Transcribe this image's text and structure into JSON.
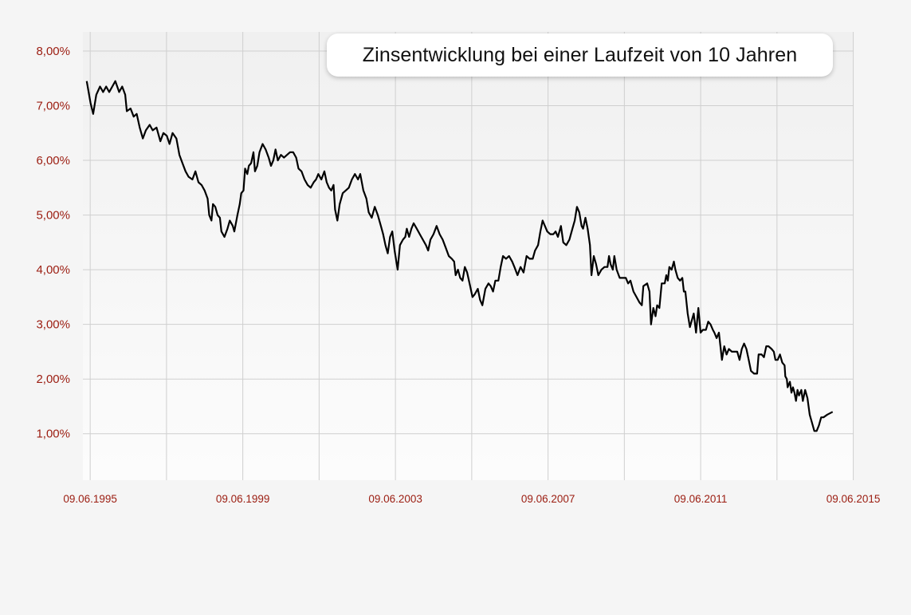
{
  "chart_data": {
    "type": "line",
    "title": "Zinsentwicklung bei einer Laufzeit von 10 Jahren",
    "xlabel": "",
    "ylabel": "",
    "x_ticks": [
      "09.06.1995",
      "09.06.1999",
      "09.06.2003",
      "09.06.2007",
      "09.06.2011",
      "09.06.2015"
    ],
    "y_ticks": [
      "1,00%",
      "2,00%",
      "3,00%",
      "4,00%",
      "5,00%",
      "6,00%",
      "7,00%",
      "8,00%"
    ],
    "xlim": [
      1995.25,
      2015.45
    ],
    "ylim": [
      0.15,
      8.35
    ],
    "grid": true,
    "colors": {
      "line": "#000000",
      "tick_label": "#9b1c10",
      "grid": "#cfcfcf",
      "plot_bg_top": "#f0f0f0",
      "plot_bg_bottom": "#fcfcfc"
    },
    "series": [
      {
        "name": "",
        "points": [
          [
            1995.35,
            7.45
          ],
          [
            1995.45,
            7.05
          ],
          [
            1995.52,
            6.85
          ],
          [
            1995.6,
            7.2
          ],
          [
            1995.7,
            7.35
          ],
          [
            1995.78,
            7.25
          ],
          [
            1995.86,
            7.35
          ],
          [
            1995.94,
            7.25
          ],
          [
            1996.02,
            7.35
          ],
          [
            1996.1,
            7.45
          ],
          [
            1996.2,
            7.25
          ],
          [
            1996.28,
            7.35
          ],
          [
            1996.36,
            7.2
          ],
          [
            1996.4,
            6.9
          ],
          [
            1996.5,
            6.95
          ],
          [
            1996.58,
            6.8
          ],
          [
            1996.66,
            6.85
          ],
          [
            1996.74,
            6.6
          ],
          [
            1996.82,
            6.4
          ],
          [
            1996.9,
            6.55
          ],
          [
            1997.0,
            6.65
          ],
          [
            1997.08,
            6.55
          ],
          [
            1997.18,
            6.6
          ],
          [
            1997.28,
            6.35
          ],
          [
            1997.36,
            6.5
          ],
          [
            1997.45,
            6.45
          ],
          [
            1997.52,
            6.3
          ],
          [
            1997.6,
            6.5
          ],
          [
            1997.7,
            6.4
          ],
          [
            1997.78,
            6.1
          ],
          [
            1997.86,
            5.95
          ],
          [
            1997.94,
            5.8
          ],
          [
            1998.02,
            5.7
          ],
          [
            1998.12,
            5.65
          ],
          [
            1998.2,
            5.8
          ],
          [
            1998.28,
            5.6
          ],
          [
            1998.36,
            5.55
          ],
          [
            1998.44,
            5.45
          ],
          [
            1998.52,
            5.3
          ],
          [
            1998.56,
            5.0
          ],
          [
            1998.62,
            4.9
          ],
          [
            1998.66,
            5.2
          ],
          [
            1998.72,
            5.15
          ],
          [
            1998.78,
            5.0
          ],
          [
            1998.84,
            4.95
          ],
          [
            1998.88,
            4.7
          ],
          [
            1998.96,
            4.6
          ],
          [
            1999.04,
            4.75
          ],
          [
            1999.1,
            4.9
          ],
          [
            1999.18,
            4.8
          ],
          [
            1999.22,
            4.7
          ],
          [
            1999.3,
            5.0
          ],
          [
            1999.36,
            5.2
          ],
          [
            1999.4,
            5.4
          ],
          [
            1999.46,
            5.45
          ],
          [
            1999.5,
            5.85
          ],
          [
            1999.56,
            5.75
          ],
          [
            1999.6,
            5.9
          ],
          [
            1999.66,
            5.95
          ],
          [
            1999.72,
            6.15
          ],
          [
            1999.76,
            5.8
          ],
          [
            1999.82,
            5.9
          ],
          [
            1999.88,
            6.15
          ],
          [
            1999.96,
            6.3
          ],
          [
            2000.04,
            6.2
          ],
          [
            2000.12,
            6.05
          ],
          [
            2000.18,
            5.9
          ],
          [
            2000.24,
            6.0
          ],
          [
            2000.3,
            6.2
          ],
          [
            2000.36,
            6.0
          ],
          [
            2000.44,
            6.1
          ],
          [
            2000.52,
            6.05
          ],
          [
            2000.6,
            6.1
          ],
          [
            2000.68,
            6.15
          ],
          [
            2000.76,
            6.15
          ],
          [
            2000.84,
            6.05
          ],
          [
            2000.9,
            5.85
          ],
          [
            2000.98,
            5.8
          ],
          [
            2001.06,
            5.65
          ],
          [
            2001.14,
            5.55
          ],
          [
            2001.22,
            5.5
          ],
          [
            2001.3,
            5.6
          ],
          [
            2001.36,
            5.65
          ],
          [
            2001.42,
            5.75
          ],
          [
            2001.5,
            5.65
          ],
          [
            2001.58,
            5.8
          ],
          [
            2001.64,
            5.6
          ],
          [
            2001.7,
            5.5
          ],
          [
            2001.76,
            5.45
          ],
          [
            2001.82,
            5.55
          ],
          [
            2001.86,
            5.1
          ],
          [
            2001.92,
            4.9
          ],
          [
            2001.98,
            5.2
          ],
          [
            2002.06,
            5.4
          ],
          [
            2002.14,
            5.45
          ],
          [
            2002.22,
            5.5
          ],
          [
            2002.3,
            5.65
          ],
          [
            2002.38,
            5.75
          ],
          [
            2002.46,
            5.65
          ],
          [
            2002.52,
            5.75
          ],
          [
            2002.6,
            5.45
          ],
          [
            2002.68,
            5.3
          ],
          [
            2002.74,
            5.05
          ],
          [
            2002.82,
            4.95
          ],
          [
            2002.9,
            5.15
          ],
          [
            2002.98,
            5.0
          ],
          [
            2003.06,
            4.8
          ],
          [
            2003.12,
            4.65
          ],
          [
            2003.18,
            4.45
          ],
          [
            2003.24,
            4.3
          ],
          [
            2003.3,
            4.6
          ],
          [
            2003.36,
            4.7
          ],
          [
            2003.42,
            4.35
          ],
          [
            2003.5,
            4.0
          ],
          [
            2003.56,
            4.45
          ],
          [
            2003.64,
            4.55
          ],
          [
            2003.7,
            4.6
          ],
          [
            2003.74,
            4.75
          ],
          [
            2003.8,
            4.6
          ],
          [
            2003.86,
            4.75
          ],
          [
            2003.92,
            4.85
          ],
          [
            2004.0,
            4.75
          ],
          [
            2004.08,
            4.65
          ],
          [
            2004.16,
            4.55
          ],
          [
            2004.24,
            4.45
          ],
          [
            2004.3,
            4.35
          ],
          [
            2004.36,
            4.55
          ],
          [
            2004.44,
            4.65
          ],
          [
            2004.52,
            4.8
          ],
          [
            2004.6,
            4.65
          ],
          [
            2004.68,
            4.55
          ],
          [
            2004.76,
            4.4
          ],
          [
            2004.84,
            4.25
          ],
          [
            2004.92,
            4.2
          ],
          [
            2004.98,
            4.15
          ],
          [
            2005.02,
            3.9
          ],
          [
            2005.08,
            4.0
          ],
          [
            2005.14,
            3.85
          ],
          [
            2005.2,
            3.8
          ],
          [
            2005.26,
            4.05
          ],
          [
            2005.32,
            3.95
          ],
          [
            2005.4,
            3.7
          ],
          [
            2005.46,
            3.5
          ],
          [
            2005.52,
            3.55
          ],
          [
            2005.6,
            3.65
          ],
          [
            2005.66,
            3.45
          ],
          [
            2005.72,
            3.35
          ],
          [
            2005.8,
            3.65
          ],
          [
            2005.88,
            3.75
          ],
          [
            2005.94,
            3.7
          ],
          [
            2006.0,
            3.6
          ],
          [
            2006.06,
            3.8
          ],
          [
            2006.14,
            3.8
          ],
          [
            2006.2,
            4.05
          ],
          [
            2006.26,
            4.25
          ],
          [
            2006.34,
            4.2
          ],
          [
            2006.42,
            4.25
          ],
          [
            2006.5,
            4.15
          ],
          [
            2006.56,
            4.05
          ],
          [
            2006.64,
            3.9
          ],
          [
            2006.72,
            4.05
          ],
          [
            2006.8,
            3.95
          ],
          [
            2006.88,
            4.25
          ],
          [
            2006.96,
            4.2
          ],
          [
            2007.04,
            4.2
          ],
          [
            2007.1,
            4.35
          ],
          [
            2007.18,
            4.45
          ],
          [
            2007.24,
            4.7
          ],
          [
            2007.3,
            4.9
          ],
          [
            2007.36,
            4.8
          ],
          [
            2007.42,
            4.7
          ],
          [
            2007.5,
            4.65
          ],
          [
            2007.58,
            4.65
          ],
          [
            2007.64,
            4.7
          ],
          [
            2007.7,
            4.6
          ],
          [
            2007.78,
            4.8
          ],
          [
            2007.84,
            4.5
          ],
          [
            2007.92,
            4.45
          ],
          [
            2008.0,
            4.55
          ],
          [
            2008.08,
            4.75
          ],
          [
            2008.14,
            4.9
          ],
          [
            2008.2,
            5.15
          ],
          [
            2008.26,
            5.05
          ],
          [
            2008.32,
            4.8
          ],
          [
            2008.36,
            4.75
          ],
          [
            2008.42,
            4.95
          ],
          [
            2008.48,
            4.75
          ],
          [
            2008.54,
            4.45
          ],
          [
            2008.58,
            3.9
          ],
          [
            2008.64,
            4.25
          ],
          [
            2008.7,
            4.1
          ],
          [
            2008.76,
            3.9
          ],
          [
            2008.84,
            4.0
          ],
          [
            2008.92,
            4.05
          ],
          [
            2009.0,
            4.05
          ],
          [
            2009.04,
            4.25
          ],
          [
            2009.08,
            4.1
          ],
          [
            2009.14,
            4.0
          ],
          [
            2009.18,
            4.25
          ],
          [
            2009.24,
            4.0
          ],
          [
            2009.32,
            3.85
          ],
          [
            2009.4,
            3.85
          ],
          [
            2009.48,
            3.85
          ],
          [
            2009.54,
            3.75
          ],
          [
            2009.6,
            3.8
          ],
          [
            2009.68,
            3.6
          ],
          [
            2009.76,
            3.5
          ],
          [
            2009.84,
            3.4
          ],
          [
            2009.9,
            3.35
          ],
          [
            2009.94,
            3.7
          ],
          [
            2010.04,
            3.75
          ],
          [
            2010.1,
            3.6
          ],
          [
            2010.14,
            3.0
          ],
          [
            2010.2,
            3.3
          ],
          [
            2010.26,
            3.15
          ],
          [
            2010.3,
            3.35
          ],
          [
            2010.36,
            3.3
          ],
          [
            2010.42,
            3.75
          ],
          [
            2010.5,
            3.75
          ],
          [
            2010.54,
            3.9
          ],
          [
            2010.58,
            3.8
          ],
          [
            2010.62,
            4.05
          ],
          [
            2010.68,
            4.0
          ],
          [
            2010.74,
            4.15
          ],
          [
            2010.78,
            4.0
          ],
          [
            2010.84,
            3.85
          ],
          [
            2010.9,
            3.8
          ],
          [
            2010.96,
            3.85
          ],
          [
            2011.0,
            3.6
          ],
          [
            2011.04,
            3.6
          ],
          [
            2011.1,
            3.2
          ],
          [
            2011.16,
            2.95
          ],
          [
            2011.22,
            3.1
          ],
          [
            2011.26,
            3.2
          ],
          [
            2011.32,
            2.85
          ],
          [
            2011.38,
            3.3
          ],
          [
            2011.44,
            2.85
          ],
          [
            2011.5,
            2.9
          ],
          [
            2011.58,
            2.9
          ],
          [
            2011.64,
            3.05
          ],
          [
            2011.7,
            3.0
          ],
          [
            2011.76,
            2.9
          ],
          [
            2011.8,
            2.85
          ],
          [
            2011.86,
            2.75
          ],
          [
            2011.92,
            2.85
          ],
          [
            2011.96,
            2.6
          ],
          [
            2012.0,
            2.35
          ],
          [
            2012.06,
            2.6
          ],
          [
            2012.12,
            2.45
          ],
          [
            2012.18,
            2.55
          ],
          [
            2012.26,
            2.5
          ],
          [
            2012.34,
            2.5
          ],
          [
            2012.4,
            2.5
          ],
          [
            2012.46,
            2.35
          ],
          [
            2012.52,
            2.55
          ],
          [
            2012.58,
            2.65
          ],
          [
            2012.64,
            2.55
          ],
          [
            2012.7,
            2.35
          ],
          [
            2012.76,
            2.15
          ],
          [
            2012.84,
            2.1
          ],
          [
            2012.92,
            2.1
          ],
          [
            2012.96,
            2.45
          ],
          [
            2013.04,
            2.45
          ],
          [
            2013.1,
            2.4
          ],
          [
            2013.16,
            2.6
          ],
          [
            2013.22,
            2.6
          ],
          [
            2013.3,
            2.55
          ],
          [
            2013.36,
            2.5
          ],
          [
            2013.4,
            2.35
          ],
          [
            2013.46,
            2.35
          ],
          [
            2013.52,
            2.45
          ],
          [
            2013.58,
            2.3
          ],
          [
            2013.64,
            2.25
          ],
          [
            2013.66,
            2.05
          ],
          [
            2013.7,
            2.0
          ],
          [
            2013.72,
            1.85
          ],
          [
            2013.78,
            1.95
          ],
          [
            2013.82,
            1.75
          ],
          [
            2013.86,
            1.85
          ],
          [
            2013.9,
            1.75
          ],
          [
            2013.94,
            1.6
          ],
          [
            2013.98,
            1.8
          ],
          [
            2014.02,
            1.7
          ],
          [
            2014.08,
            1.8
          ],
          [
            2014.12,
            1.6
          ],
          [
            2014.18,
            1.8
          ],
          [
            2014.24,
            1.65
          ],
          [
            2014.3,
            1.35
          ],
          [
            2014.36,
            1.2
          ],
          [
            2014.42,
            1.05
          ],
          [
            2014.48,
            1.05
          ],
          [
            2014.54,
            1.15
          ],
          [
            2014.6,
            1.3
          ],
          [
            2014.66,
            1.3
          ],
          [
            2014.76,
            1.35
          ],
          [
            2014.9,
            1.4
          ]
        ]
      }
    ]
  }
}
